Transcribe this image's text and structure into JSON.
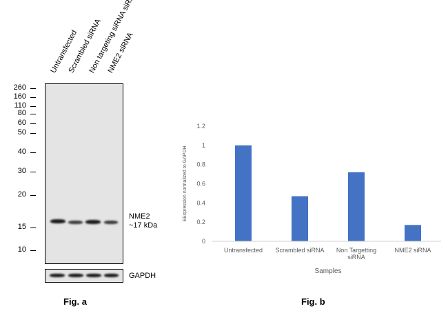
{
  "fig_a": {
    "caption": "Fig. a",
    "lanes": [
      "Untransfected",
      "Scrambled siRNA",
      "Non targeting siRNA siRNA",
      "NME2 siRNA"
    ],
    "markers": [
      "260",
      "160",
      "110",
      "80",
      "60",
      "50",
      "40",
      "30",
      "20",
      "15",
      "10"
    ],
    "band_label_line1": "NME2",
    "band_label_line2": "~17 kDa",
    "loading_label": "GAPDH"
  },
  "fig_b": {
    "caption": "Fig. b"
  },
  "chart_data": {
    "type": "bar",
    "categories": [
      "Untransfected",
      "Scrambled siRNA",
      "Non Targetting siRNA",
      "NME2 siRNA"
    ],
    "category_lines": [
      [
        "Untransfected"
      ],
      [
        "Scrambled siRNA"
      ],
      [
        "Non Targetting",
        "siRNA"
      ],
      [
        "NME2 siRNA"
      ]
    ],
    "values": [
      1.0,
      0.47,
      0.72,
      0.17
    ],
    "title": "",
    "xlabel": "Samples",
    "ylabel": "EExpression normalized to GAPDH",
    "ylim": [
      0,
      1.2
    ],
    "yticks": [
      0,
      0.2,
      0.4,
      0.6,
      0.8,
      1,
      1.2
    ],
    "ytick_labels": [
      "0",
      "0.2",
      "0.4",
      "0.6",
      "0.8",
      "1",
      "1.2"
    ],
    "bar_color": "#4472c4",
    "grid": false
  }
}
